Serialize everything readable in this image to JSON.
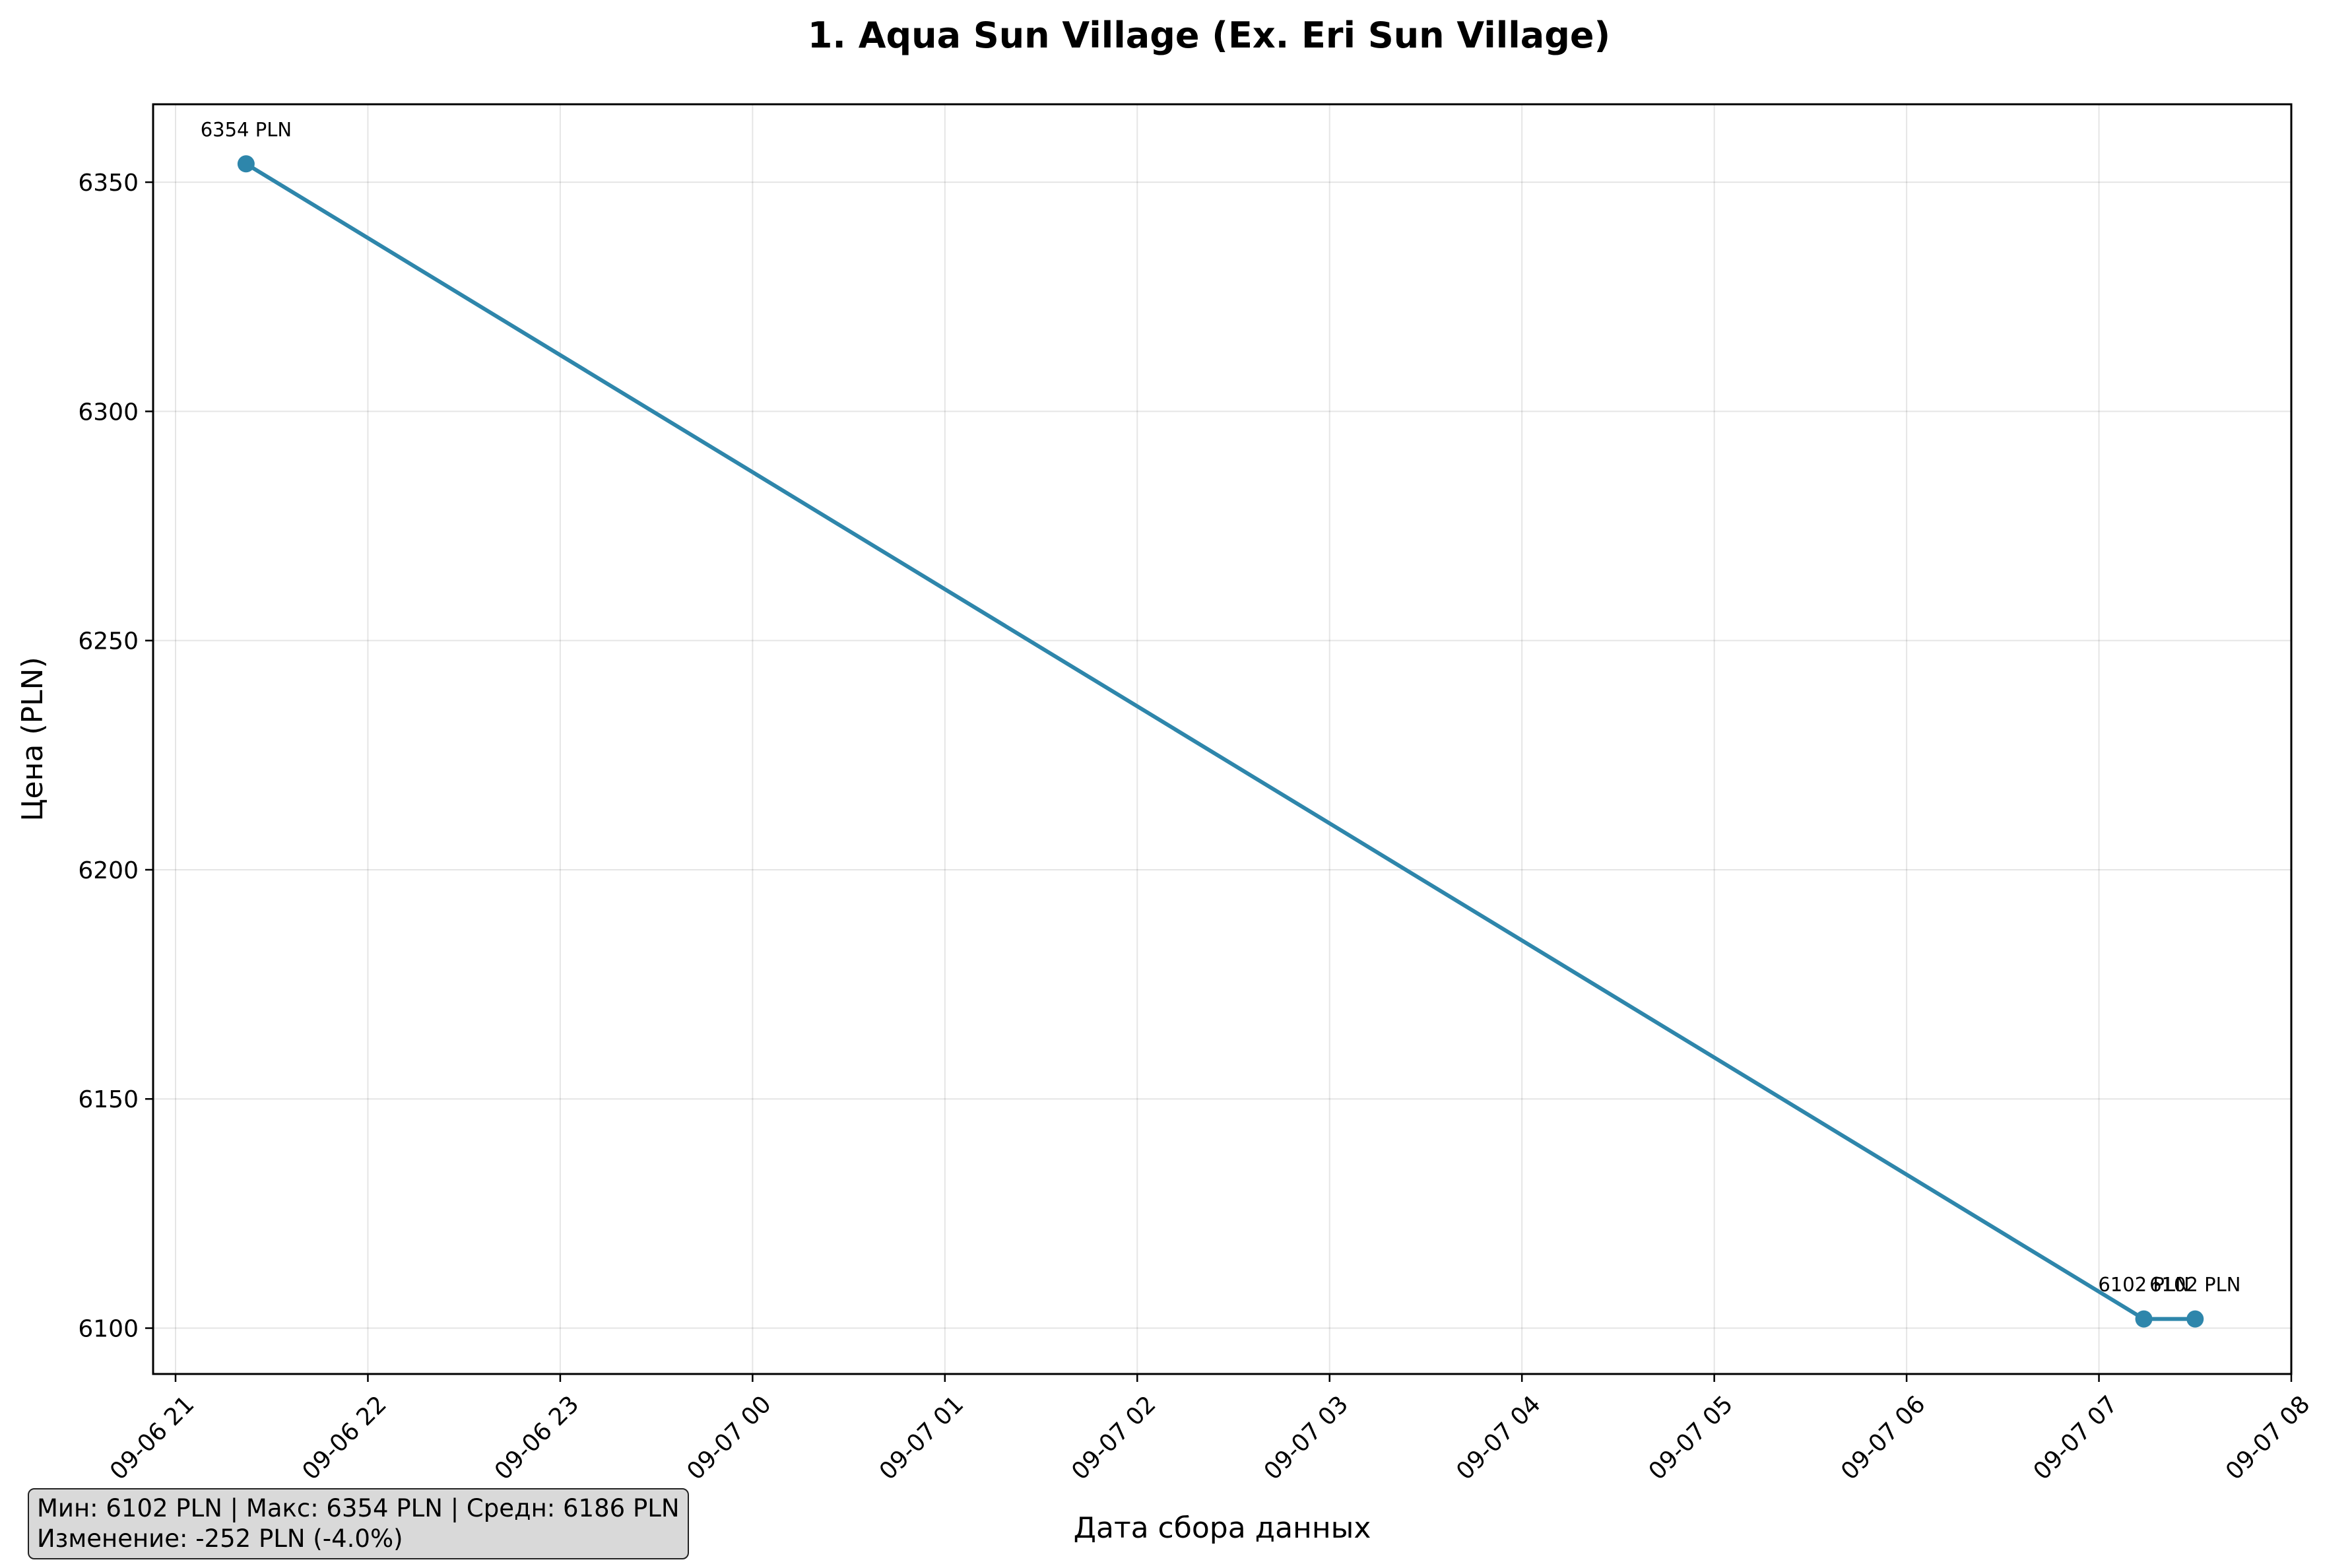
{
  "chart_data": {
    "type": "line",
    "title": "1. Aqua Sun Village (Ex. Eri Sun Village)",
    "xlabel": "Дата сбора данных",
    "ylabel": "Цена (PLN)",
    "x_tick_labels": [
      "09-06 21",
      "09-06 22",
      "09-06 23",
      "09-07 00",
      "09-07 01",
      "09-07 02",
      "09-07 03",
      "09-07 04",
      "09-07 05",
      "09-07 06",
      "09-07 07",
      "09-07 08"
    ],
    "y_tick_labels": [
      "6100",
      "6150",
      "6200",
      "6250",
      "6300",
      "6350"
    ],
    "x_range": [
      "2024-09-06 20:53",
      "2024-09-07 08:00"
    ],
    "ylim": [
      6090,
      6367
    ],
    "series": [
      {
        "color": "#2e86ab",
        "points": [
          {
            "x": "2024-09-06 21:22",
            "y": 6354,
            "label": "6354 PLN"
          },
          {
            "x": "2024-09-07 07:14",
            "y": 6102,
            "label": "6102 PLN"
          },
          {
            "x": "2024-09-07 07:30",
            "y": 6102,
            "label": "6102 PLN"
          }
        ]
      }
    ],
    "grid": true,
    "legend": "none"
  },
  "stats": {
    "line1": "Мин: 6102 PLN | Макс: 6354 PLN | Средн: 6186 PLN",
    "line2": "Изменение: -252 PLN (-4.0%)"
  }
}
